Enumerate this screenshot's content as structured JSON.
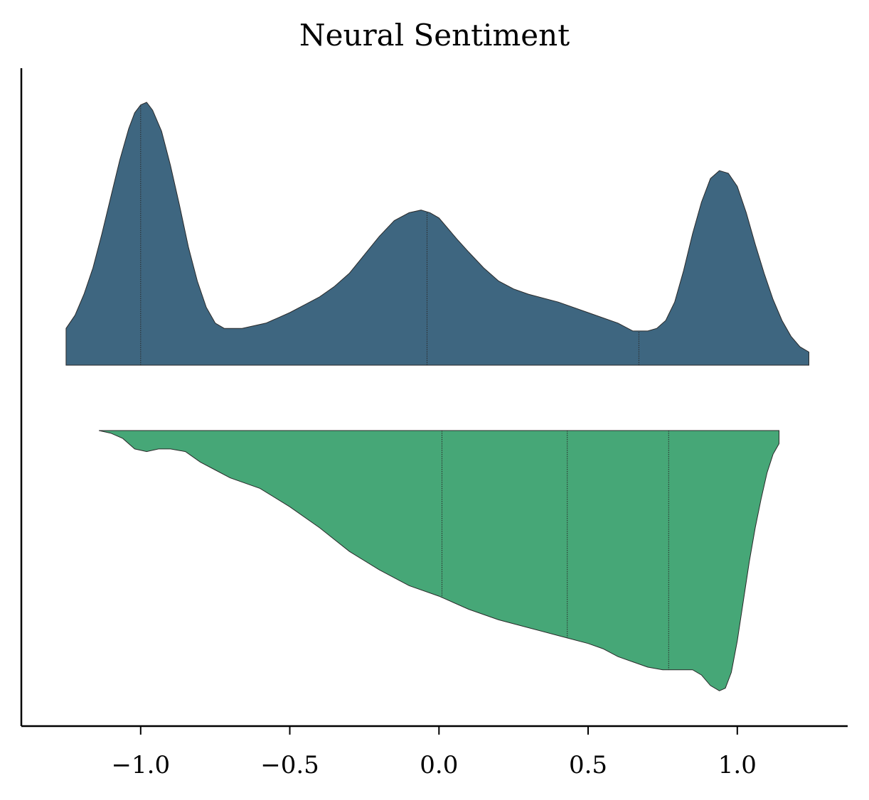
{
  "chart_data": {
    "type": "violin",
    "title": "Neural Sentiment",
    "xlabel": "",
    "ylabel": "",
    "xlim": [
      -1.4,
      1.37
    ],
    "xticks": [
      -1.0,
      -0.5,
      0.0,
      0.5,
      1.0
    ],
    "xtick_labels": [
      "−1.0",
      "−0.5",
      "0.0",
      "0.5",
      "1.0"
    ],
    "orientation": "horizontal-split",
    "grid": false,
    "legend": "none",
    "series": [
      {
        "color": "#3e6680",
        "side": "upper",
        "range": [
          -1.25,
          1.24
        ],
        "quartile_lines": [
          -1.0,
          -0.04,
          0.67
        ],
        "density_x": [
          -1.25,
          -1.22,
          -1.19,
          -1.16,
          -1.13,
          -1.1,
          -1.07,
          -1.04,
          -1.02,
          -1.0,
          -0.98,
          -0.96,
          -0.93,
          -0.9,
          -0.87,
          -0.84,
          -0.81,
          -0.78,
          -0.75,
          -0.72,
          -0.69,
          -0.66,
          -0.62,
          -0.58,
          -0.54,
          -0.5,
          -0.45,
          -0.4,
          -0.35,
          -0.3,
          -0.25,
          -0.2,
          -0.15,
          -0.1,
          -0.06,
          -0.03,
          0.0,
          0.03,
          0.06,
          0.1,
          0.15,
          0.2,
          0.25,
          0.3,
          0.4,
          0.5,
          0.6,
          0.65,
          0.7,
          0.73,
          0.76,
          0.79,
          0.82,
          0.85,
          0.88,
          0.91,
          0.94,
          0.97,
          1.0,
          1.03,
          1.06,
          1.09,
          1.12,
          1.15,
          1.18,
          1.21,
          1.24
        ],
        "density_y": [
          0.14,
          0.19,
          0.27,
          0.37,
          0.5,
          0.64,
          0.78,
          0.9,
          0.96,
          0.99,
          1.0,
          0.97,
          0.89,
          0.76,
          0.61,
          0.45,
          0.32,
          0.22,
          0.16,
          0.14,
          0.14,
          0.14,
          0.15,
          0.16,
          0.18,
          0.2,
          0.23,
          0.26,
          0.3,
          0.35,
          0.42,
          0.49,
          0.55,
          0.58,
          0.59,
          0.58,
          0.56,
          0.52,
          0.48,
          0.43,
          0.37,
          0.32,
          0.29,
          0.27,
          0.24,
          0.2,
          0.16,
          0.13,
          0.13,
          0.14,
          0.17,
          0.24,
          0.36,
          0.5,
          0.62,
          0.71,
          0.74,
          0.73,
          0.68,
          0.58,
          0.46,
          0.35,
          0.25,
          0.17,
          0.11,
          0.07,
          0.05
        ]
      },
      {
        "color": "#46a777",
        "side": "lower",
        "range": [
          -1.14,
          1.14
        ],
        "quartile_lines": [
          0.01,
          0.43,
          0.77
        ],
        "density_x": [
          -1.14,
          -1.1,
          -1.06,
          -1.02,
          -0.98,
          -0.94,
          -0.9,
          -0.85,
          -0.8,
          -0.75,
          -0.7,
          -0.6,
          -0.5,
          -0.4,
          -0.3,
          -0.2,
          -0.1,
          0.0,
          0.1,
          0.2,
          0.3,
          0.4,
          0.5,
          0.55,
          0.6,
          0.65,
          0.7,
          0.75,
          0.8,
          0.85,
          0.88,
          0.91,
          0.94,
          0.96,
          0.98,
          1.0,
          1.02,
          1.04,
          1.06,
          1.08,
          1.1,
          1.12,
          1.14
        ],
        "density_y": [
          0.0,
          0.01,
          0.03,
          0.07,
          0.08,
          0.07,
          0.07,
          0.08,
          0.12,
          0.15,
          0.18,
          0.22,
          0.29,
          0.37,
          0.46,
          0.53,
          0.59,
          0.63,
          0.68,
          0.72,
          0.75,
          0.78,
          0.81,
          0.83,
          0.86,
          0.88,
          0.9,
          0.91,
          0.91,
          0.91,
          0.93,
          0.97,
          0.99,
          0.98,
          0.92,
          0.8,
          0.65,
          0.5,
          0.37,
          0.26,
          0.16,
          0.09,
          0.05
        ]
      }
    ]
  }
}
